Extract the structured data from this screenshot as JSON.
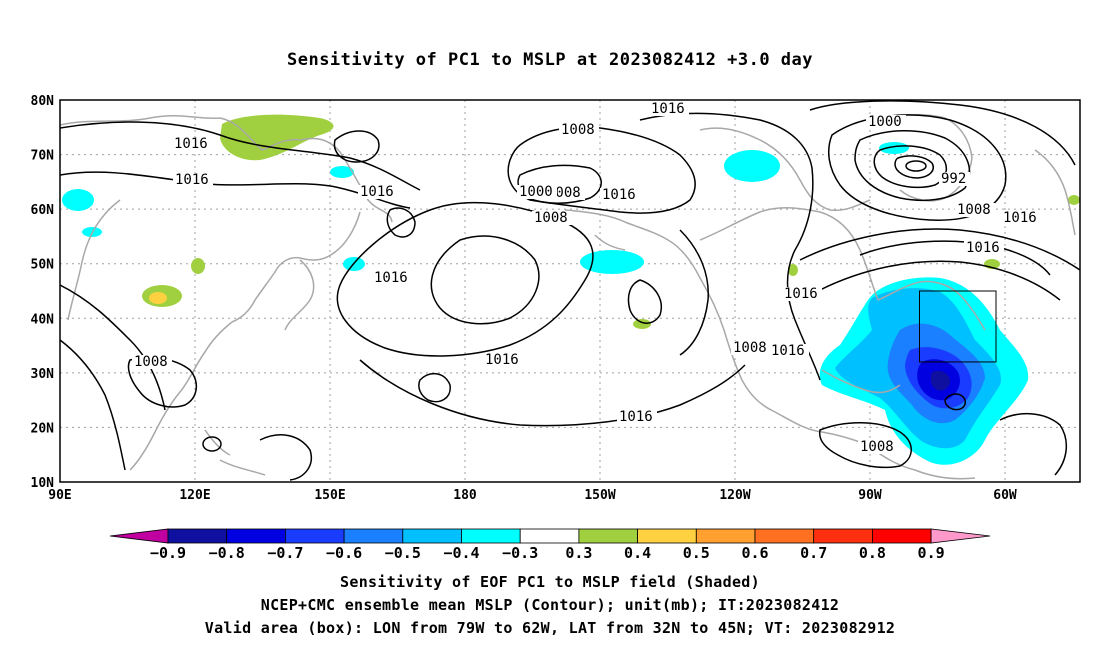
{
  "title": "Sensitivity of PC1 to MSLP at 2023082412 +3.0 day",
  "lat_labels": [
    "80N",
    "70N",
    "60N",
    "50N",
    "40N",
    "30N",
    "20N",
    "10N"
  ],
  "lon_labels": [
    "90E",
    "120E",
    "150E",
    "180",
    "150W",
    "120W",
    "90W",
    "60W"
  ],
  "contour_labels": [
    "1016",
    "1008",
    "1016",
    "1008",
    "1016",
    "1000",
    "1008",
    "1016",
    "1016",
    "1000",
    "992",
    "1008",
    "1016",
    "1016",
    "1016",
    "1008",
    "1016",
    "1016",
    "1008",
    "1016",
    "1016",
    "1008"
  ],
  "colorbar": {
    "labels": [
      "−0.9",
      "−0.8",
      "−0.7",
      "−0.6",
      "−0.5",
      "−0.4",
      "−0.3",
      "0.3",
      "0.4",
      "0.5",
      "0.6",
      "0.7",
      "0.8",
      "0.9"
    ],
    "colors": [
      "#c000a0",
      "#1010a0",
      "#0000e0",
      "#1a3cff",
      "#1a80ff",
      "#00c0ff",
      "#00ffff",
      "#ffffff",
      "#a0d040",
      "#ffd040",
      "#ffa030",
      "#ff7020",
      "#ff3010",
      "#ff0000",
      "#ff99cc"
    ]
  },
  "valid_box": {
    "lon_from": -79,
    "lon_to": -62,
    "lat_from": 32,
    "lat_to": 45
  },
  "captions": [
    "Sensitivity of EOF PC1 to MSLP field (Shaded)",
    "NCEP+CMC ensemble mean MSLP (Contour); unit(mb); IT:2023082412",
    "Valid area (box): LON from 79W to 62W, LAT from 32N to 45N; VT: 2023082912"
  ]
}
